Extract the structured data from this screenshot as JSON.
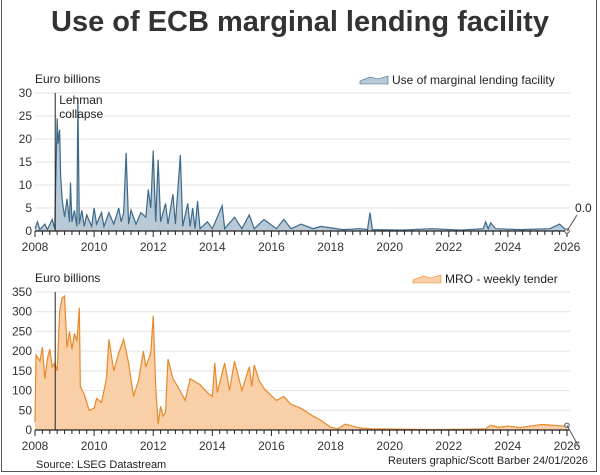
{
  "title": "Use of ECB marginal lending facility",
  "source": "Source: LSEG Datastream",
  "credit": "Reuters graphic/Scott Barber 24/01/2026",
  "annotation": "Lehman collapse",
  "chart_data": [
    {
      "type": "area",
      "ylabel": "Euro billions",
      "legend": "Use of marginal lending facility",
      "legend_position": "top-right",
      "ylim": [
        0,
        30
      ],
      "yticks": [
        0,
        5,
        10,
        15,
        20,
        25,
        30
      ],
      "xlim": [
        "2008-01",
        "2026-01"
      ],
      "xticks": [
        "2008",
        "2010",
        "2012",
        "2014",
        "2016",
        "2018",
        "2020",
        "2022",
        "2024",
        "2026"
      ],
      "grid": true,
      "colors": {
        "line": "#3d6a8a",
        "fill": "#b9c9d6"
      },
      "end_label": "0.0",
      "annotation_date": "2008-09",
      "points": [
        [
          "2008-01",
          0.5
        ],
        [
          "2008-02",
          2
        ],
        [
          "2008-03",
          0.3
        ],
        [
          "2008-05",
          1.5
        ],
        [
          "2008-06",
          0.3
        ],
        [
          "2008-08",
          2.5
        ],
        [
          "2008-09",
          0.5
        ],
        [
          "2008-10",
          24.5
        ],
        [
          "2008-10",
          19
        ],
        [
          "2008-11",
          22
        ],
        [
          "2008-11",
          12
        ],
        [
          "2008-12",
          7
        ],
        [
          "2009-01",
          3
        ],
        [
          "2009-02",
          7
        ],
        [
          "2009-03",
          2
        ],
        [
          "2009-03",
          10.5
        ],
        [
          "2009-04",
          2
        ],
        [
          "2009-05",
          4.5
        ],
        [
          "2009-06",
          1
        ],
        [
          "2009-06",
          29
        ],
        [
          "2009-07",
          1.5
        ],
        [
          "2009-08",
          4.5
        ],
        [
          "2009-09",
          1
        ],
        [
          "2009-10",
          3.5
        ],
        [
          "2009-12",
          1
        ],
        [
          "2010-01",
          5
        ],
        [
          "2010-02",
          1.5
        ],
        [
          "2010-04",
          4
        ],
        [
          "2010-05",
          1
        ],
        [
          "2010-07",
          4
        ],
        [
          "2010-09",
          1.5
        ],
        [
          "2010-11",
          5
        ],
        [
          "2010-12",
          2
        ],
        [
          "2011-01",
          4
        ],
        [
          "2011-02",
          17
        ],
        [
          "2011-03",
          1.5
        ],
        [
          "2011-04",
          4.5
        ],
        [
          "2011-06",
          1.5
        ],
        [
          "2011-08",
          4
        ],
        [
          "2011-10",
          3
        ],
        [
          "2011-11",
          9
        ],
        [
          "2011-12",
          5
        ],
        [
          "2012-01",
          17.5
        ],
        [
          "2012-02",
          2
        ],
        [
          "2012-03",
          15.5
        ],
        [
          "2012-04",
          2
        ],
        [
          "2012-06",
          6
        ],
        [
          "2012-07",
          1.5
        ],
        [
          "2012-09",
          8
        ],
        [
          "2012-10",
          1.5
        ],
        [
          "2012-12",
          16.5
        ],
        [
          "2013-01",
          1
        ],
        [
          "2013-03",
          6
        ],
        [
          "2013-04",
          1
        ],
        [
          "2013-05",
          5
        ],
        [
          "2013-06",
          0.5
        ],
        [
          "2013-07",
          6.5
        ],
        [
          "2013-08",
          0.5
        ],
        [
          "2013-11",
          2
        ],
        [
          "2014-01",
          0.5
        ],
        [
          "2014-05",
          5.5
        ],
        [
          "2014-06",
          0.5
        ],
        [
          "2014-10",
          3
        ],
        [
          "2015-01",
          0.5
        ],
        [
          "2015-04",
          3.5
        ],
        [
          "2015-06",
          0.5
        ],
        [
          "2015-10",
          2.5
        ],
        [
          "2016-03",
          0.5
        ],
        [
          "2016-06",
          2.5
        ],
        [
          "2016-09",
          0.5
        ],
        [
          "2017-01",
          1.5
        ],
        [
          "2017-06",
          0.5
        ],
        [
          "2017-09",
          1
        ],
        [
          "2018-06",
          0.3
        ],
        [
          "2019-01",
          0.5
        ],
        [
          "2019-04",
          0.3
        ],
        [
          "2019-05",
          4
        ],
        [
          "2019-06",
          0.3
        ],
        [
          "2020-06",
          0.2
        ],
        [
          "2021-06",
          0.5
        ],
        [
          "2022-06",
          0.2
        ],
        [
          "2023-03",
          0.5
        ],
        [
          "2023-04",
          2
        ],
        [
          "2023-05",
          0.5
        ],
        [
          "2023-06",
          1.8
        ],
        [
          "2023-08",
          0.5
        ],
        [
          "2024-06",
          0.3
        ],
        [
          "2025-06",
          0.5
        ],
        [
          "2025-10",
          1.5
        ],
        [
          "2025-12",
          0.5
        ],
        [
          "2026-01",
          0.0
        ]
      ]
    },
    {
      "type": "area",
      "ylabel": "Euro billions",
      "legend": "MRO - weekly tender",
      "legend_position": "top-right",
      "ylim": [
        0,
        350
      ],
      "yticks": [
        0,
        50,
        100,
        150,
        200,
        250,
        300,
        350
      ],
      "xlim": [
        "2008-01",
        "2026-01"
      ],
      "xticks": [
        "2008",
        "2010",
        "2012",
        "2014",
        "2016",
        "2018",
        "2020",
        "2022",
        "2024",
        "2026"
      ],
      "grid": true,
      "colors": {
        "line": "#e8892c",
        "fill": "#f8cfa6"
      },
      "annotation_date": "2008-09",
      "points": [
        [
          "2008-01",
          20
        ],
        [
          "2008-01",
          190
        ],
        [
          "2008-03",
          175
        ],
        [
          "2008-04",
          210
        ],
        [
          "2008-05",
          130
        ],
        [
          "2008-06",
          180
        ],
        [
          "2008-07",
          205
        ],
        [
          "2008-08",
          160
        ],
        [
          "2008-09",
          170
        ],
        [
          "2008-10",
          150
        ],
        [
          "2008-11",
          300
        ],
        [
          "2008-12",
          335
        ],
        [
          "2009-01",
          340
        ],
        [
          "2009-02",
          210
        ],
        [
          "2009-03",
          250
        ],
        [
          "2009-04",
          205
        ],
        [
          "2009-05",
          245
        ],
        [
          "2009-06",
          225
        ],
        [
          "2009-07",
          310
        ],
        [
          "2009-07",
          110
        ],
        [
          "2009-09",
          90
        ],
        [
          "2009-11",
          50
        ],
        [
          "2010-01",
          55
        ],
        [
          "2010-02",
          80
        ],
        [
          "2010-04",
          70
        ],
        [
          "2010-06",
          130
        ],
        [
          "2010-07",
          230
        ],
        [
          "2010-09",
          150
        ],
        [
          "2010-11",
          195
        ],
        [
          "2011-01",
          230
        ],
        [
          "2011-03",
          170
        ],
        [
          "2011-05",
          85
        ],
        [
          "2011-07",
          125
        ],
        [
          "2011-09",
          200
        ],
        [
          "2011-10",
          160
        ],
        [
          "2011-12",
          195
        ],
        [
          "2012-01",
          290
        ],
        [
          "2012-02",
          110
        ],
        [
          "2012-03",
          15
        ],
        [
          "2012-04",
          60
        ],
        [
          "2012-05",
          35
        ],
        [
          "2012-06",
          45
        ],
        [
          "2012-07",
          180
        ],
        [
          "2012-09",
          130
        ],
        [
          "2012-11",
          110
        ],
        [
          "2013-02",
          75
        ],
        [
          "2013-04",
          130
        ],
        [
          "2013-08",
          115
        ],
        [
          "2013-11",
          95
        ],
        [
          "2014-01",
          85
        ],
        [
          "2014-02",
          170
        ],
        [
          "2014-03",
          95
        ],
        [
          "2014-06",
          170
        ],
        [
          "2014-08",
          100
        ],
        [
          "2014-10",
          175
        ],
        [
          "2015-01",
          100
        ],
        [
          "2015-04",
          160
        ],
        [
          "2015-05",
          110
        ],
        [
          "2015-06",
          165
        ],
        [
          "2015-08",
          125
        ],
        [
          "2015-10",
          105
        ],
        [
          "2016-03",
          75
        ],
        [
          "2016-06",
          85
        ],
        [
          "2016-09",
          65
        ],
        [
          "2017-01",
          55
        ],
        [
          "2017-06",
          35
        ],
        [
          "2017-09",
          25
        ],
        [
          "2018-01",
          7
        ],
        [
          "2018-04",
          3
        ],
        [
          "2018-07",
          15
        ],
        [
          "2019-01",
          5
        ],
        [
          "2019-06",
          3
        ],
        [
          "2020-06",
          2
        ],
        [
          "2021-06",
          1
        ],
        [
          "2022-10",
          2
        ],
        [
          "2023-04",
          3
        ],
        [
          "2023-06",
          12
        ],
        [
          "2023-09",
          7
        ],
        [
          "2024-01",
          10
        ],
        [
          "2024-06",
          6
        ],
        [
          "2024-10",
          10
        ],
        [
          "2025-03",
          14
        ],
        [
          "2025-07",
          12
        ],
        [
          "2025-11",
          10
        ],
        [
          "2026-01",
          12
        ]
      ]
    }
  ]
}
